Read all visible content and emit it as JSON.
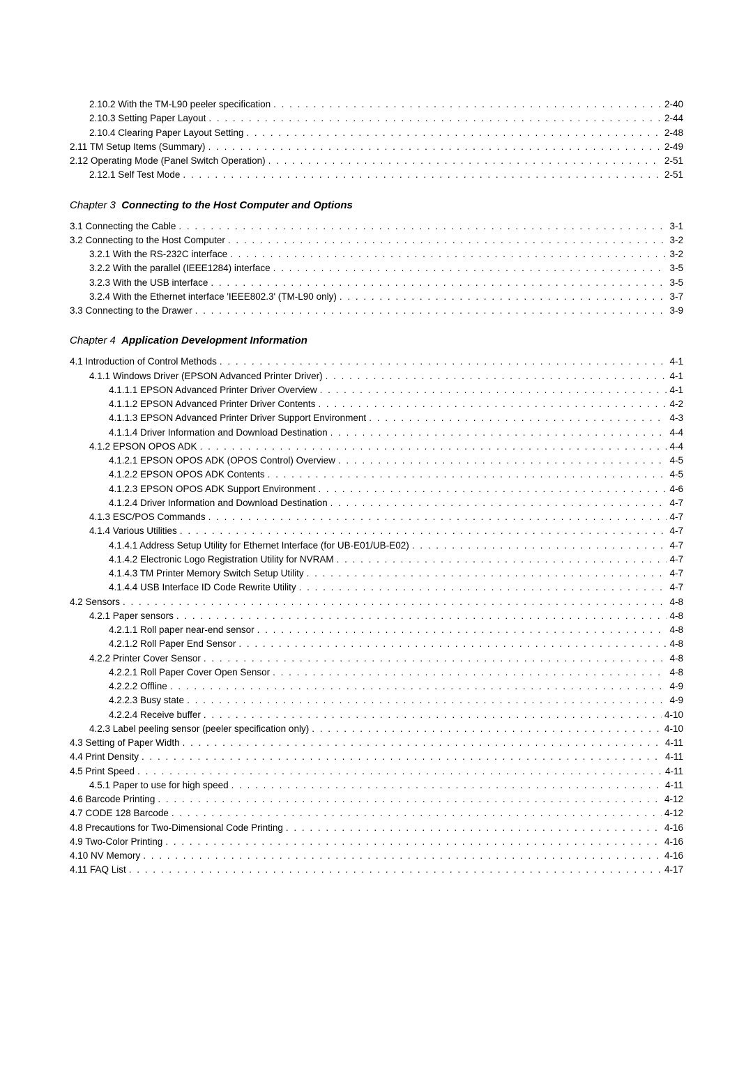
{
  "section_a": [
    {
      "indent": 1,
      "label": "2.10.2 With the TM-L90 peeler specification",
      "page": "2-40"
    },
    {
      "indent": 1,
      "label": "2.10.3 Setting Paper Layout",
      "page": "2-44"
    },
    {
      "indent": 1,
      "label": "2.10.4 Clearing Paper Layout Setting",
      "page": "2-48"
    },
    {
      "indent": 0,
      "label": "2.11 TM Setup Items (Summary)",
      "page": "2-49"
    },
    {
      "indent": 0,
      "label": "2.12 Operating Mode (Panel Switch Operation)",
      "page": "2-51"
    },
    {
      "indent": 1,
      "label": "2.12.1 Self Test Mode",
      "page": "2-51"
    }
  ],
  "chapter3": {
    "prefix": "Chapter 3",
    "title": "Connecting to the Host Computer and Options"
  },
  "section_b": [
    {
      "indent": 0,
      "label": "3.1 Connecting the Cable",
      "page": "3-1"
    },
    {
      "indent": 0,
      "label": "3.2 Connecting to the Host Computer",
      "page": "3-2"
    },
    {
      "indent": 1,
      "label": "3.2.1 With the RS-232C interface",
      "page": "3-2"
    },
    {
      "indent": 1,
      "label": "3.2.2 With the parallel (IEEE1284) interface",
      "page": "3-5"
    },
    {
      "indent": 1,
      "label": "3.2.3 With the USB interface",
      "page": "3-5"
    },
    {
      "indent": 1,
      "label": "3.2.4 With the Ethernet interface 'IEEE802.3' (TM-L90 only)",
      "page": "3-7"
    },
    {
      "indent": 0,
      "label": "3.3 Connecting to the Drawer",
      "page": "3-9"
    }
  ],
  "chapter4": {
    "prefix": "Chapter 4",
    "title": "Application Development Information"
  },
  "section_c": [
    {
      "indent": 0,
      "label": "4.1 Introduction of Control Methods",
      "page": "4-1"
    },
    {
      "indent": 1,
      "label": "4.1.1 Windows Driver (EPSON Advanced Printer Driver)",
      "page": "4-1"
    },
    {
      "indent": 2,
      "label": "4.1.1.1 EPSON Advanced Printer Driver Overview",
      "page": "4-1"
    },
    {
      "indent": 2,
      "label": "4.1.1.2 EPSON Advanced Printer Driver Contents",
      "page": "4-2"
    },
    {
      "indent": 2,
      "label": "4.1.1.3 EPSON Advanced Printer Driver Support Environment",
      "page": "4-3"
    },
    {
      "indent": 2,
      "label": "4.1.1.4 Driver Information and Download Destination",
      "page": "4-4"
    },
    {
      "indent": 1,
      "label": "4.1.2 EPSON OPOS ADK",
      "page": "4-4"
    },
    {
      "indent": 2,
      "label": "4.1.2.1 EPSON OPOS ADK (OPOS Control) Overview",
      "page": "4-5"
    },
    {
      "indent": 2,
      "label": "4.1.2.2 EPSON OPOS ADK Contents",
      "page": "4-5"
    },
    {
      "indent": 2,
      "label": "4.1.2.3 EPSON OPOS ADK Support Environment",
      "page": "4-6"
    },
    {
      "indent": 2,
      "label": "4.1.2.4 Driver Information and Download Destination",
      "page": "4-7"
    },
    {
      "indent": 1,
      "label": "4.1.3 ESC/POS Commands",
      "page": "4-7"
    },
    {
      "indent": 1,
      "label": "4.1.4 Various Utilities",
      "page": "4-7"
    },
    {
      "indent": 2,
      "label": "4.1.4.1 Address Setup Utility for Ethernet Interface (for UB-E01/UB-E02)",
      "page": "4-7"
    },
    {
      "indent": 2,
      "label": "4.1.4.2 Electronic Logo Registration Utility for NVRAM",
      "page": "4-7"
    },
    {
      "indent": 2,
      "label": "4.1.4.3 TM Printer Memory Switch Setup Utility",
      "page": "4-7"
    },
    {
      "indent": 2,
      "label": "4.1.4.4 USB Interface ID Code Rewrite Utility",
      "page": "4-7"
    },
    {
      "indent": 0,
      "label": "4.2 Sensors",
      "page": "4-8"
    },
    {
      "indent": 1,
      "label": "4.2.1 Paper sensors",
      "page": "4-8"
    },
    {
      "indent": 2,
      "label": "4.2.1.1 Roll paper near-end sensor",
      "page": "4-8"
    },
    {
      "indent": 2,
      "label": "4.2.1.2 Roll Paper End Sensor",
      "page": "4-8"
    },
    {
      "indent": 1,
      "label": "4.2.2 Printer Cover Sensor",
      "page": "4-8"
    },
    {
      "indent": 2,
      "label": "4.2.2.1 Roll Paper Cover Open Sensor",
      "page": "4-8"
    },
    {
      "indent": 2,
      "label": "4.2.2.2 Offline",
      "page": "4-9"
    },
    {
      "indent": 2,
      "label": "4.2.2.3 Busy state",
      "page": "4-9"
    },
    {
      "indent": 2,
      "label": "4.2.2.4 Receive buffer",
      "page": "4-10"
    },
    {
      "indent": 1,
      "label": "4.2.3 Label peeling sensor (peeler specification only)",
      "page": "4-10"
    },
    {
      "indent": 0,
      "label": "4.3 Setting of Paper Width",
      "page": "4-11"
    },
    {
      "indent": 0,
      "label": "4.4 Print Density",
      "page": "4-11"
    },
    {
      "indent": 0,
      "label": "4.5 Print Speed",
      "page": "4-11"
    },
    {
      "indent": 1,
      "label": "4.5.1 Paper to use for high speed",
      "page": "4-11"
    },
    {
      "indent": 0,
      "label": "4.6 Barcode Printing",
      "page": "4-12"
    },
    {
      "indent": 0,
      "label": "4.7 CODE 128 Barcode",
      "page": "4-12"
    },
    {
      "indent": 0,
      "label": "4.8 Precautions for Two-Dimensional Code Printing",
      "page": "4-16"
    },
    {
      "indent": 0,
      "label": "4.9 Two-Color Printing",
      "page": "4-16"
    },
    {
      "indent": 0,
      "label": "4.10 NV Memory",
      "page": "4-16"
    },
    {
      "indent": 0,
      "label": "4.11 FAQ List",
      "page": "4-17"
    }
  ]
}
